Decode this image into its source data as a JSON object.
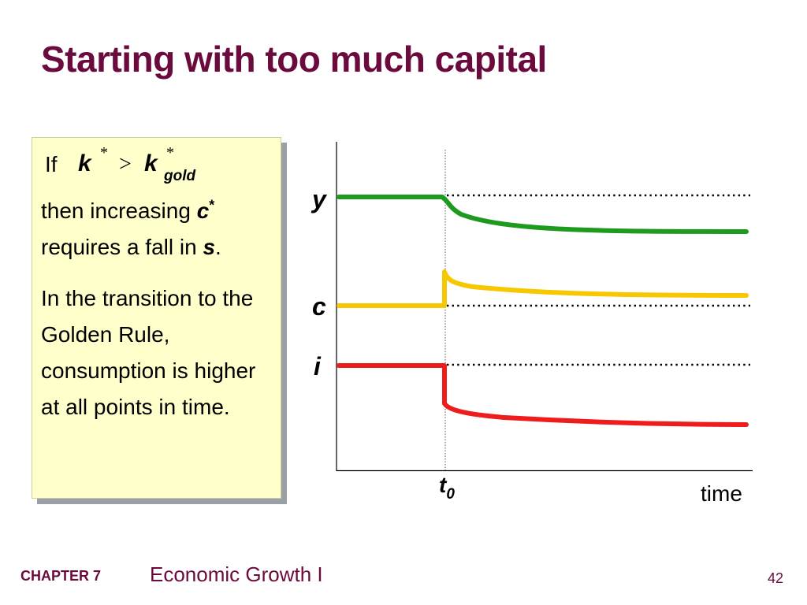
{
  "title": "Starting with too much capital",
  "note": {
    "if_word": "If",
    "k_symbol": "k",
    "star": "*",
    "gt": ">",
    "gold_subscript": "gold",
    "p1": {
      "text1": "then increasing ",
      "c_symbol": "c",
      "star": "*",
      "text2": "requires a fall in ",
      "s_symbol": "s",
      "period": "."
    },
    "p2": "In the transition to the Golden Rule, consumption is higher at all points in time."
  },
  "chart": {
    "labels": {
      "y": "y",
      "c": "c",
      "i": "i",
      "t": "t",
      "t_sub": "0",
      "time": "time"
    },
    "colors": {
      "y": "#1e9a1e",
      "c": "#f7c800",
      "i": "#ee1c1c",
      "label": "#000000"
    }
  },
  "footer": {
    "chapter": "CHAPTER 7",
    "topic": "Economic Growth I",
    "page": "42"
  }
}
